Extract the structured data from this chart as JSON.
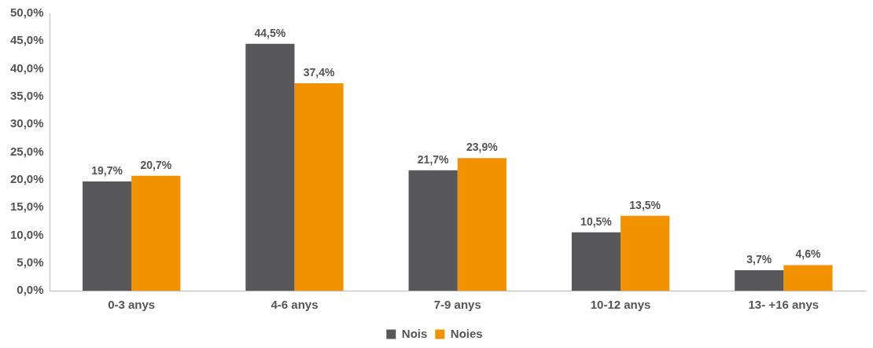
{
  "chart_data": {
    "type": "bar",
    "categories": [
      "0-3 anys",
      "4-6 anys",
      "7-9 anys",
      "10-12 anys",
      "13- +16 anys"
    ],
    "series": [
      {
        "name": "Nois",
        "color": "#58585a",
        "values": [
          19.7,
          44.5,
          21.7,
          10.5,
          3.7
        ],
        "value_labels": [
          "19,7%",
          "44,5%",
          "21,7%",
          "10,5%",
          "3,7%"
        ]
      },
      {
        "name": "Noies",
        "color": "#f39200",
        "values": [
          20.7,
          37.4,
          23.9,
          13.5,
          4.6
        ],
        "value_labels": [
          "20,7%",
          "37,4%",
          "23,9%",
          "13,5%",
          "4,6%"
        ]
      }
    ],
    "ylim": [
      0,
      50
    ],
    "yticks": [
      {
        "value": 0,
        "label": "0,0%"
      },
      {
        "value": 5,
        "label": "5,0%"
      },
      {
        "value": 10,
        "label": "10,0%"
      },
      {
        "value": 15,
        "label": "15,0%"
      },
      {
        "value": 20,
        "label": "20,0%"
      },
      {
        "value": 25,
        "label": "25,0%"
      },
      {
        "value": 30,
        "label": "30,0%"
      },
      {
        "value": 35,
        "label": "35,0%"
      },
      {
        "value": 40,
        "label": "40,0%"
      },
      {
        "value": 45,
        "label": "45,0%"
      },
      {
        "value": 50,
        "label": "50,0%"
      }
    ],
    "grid": false,
    "legend": "bottom"
  }
}
